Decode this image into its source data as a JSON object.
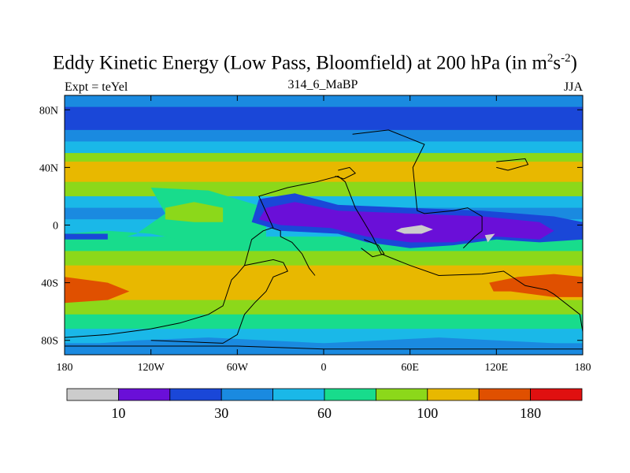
{
  "chart_data": {
    "type": "heatmap",
    "title_main": "Eddy Kinetic Energy (Low Pass, Bloomfield) at 200 hPa (in m",
    "title_sup1": "2",
    "title_mid": "s",
    "title_sup2": "-2",
    "title_end": ")",
    "subtitle": "314_6_MaBP",
    "left_label": "Expt = teYel",
    "right_label": "JJA",
    "x_range": [
      -180,
      180
    ],
    "y_range": [
      -90,
      90
    ],
    "x_ticks": [
      {
        "value": -180,
        "label": "180"
      },
      {
        "value": -120,
        "label": "120W"
      },
      {
        "value": -60,
        "label": "60W"
      },
      {
        "value": 0,
        "label": "0"
      },
      {
        "value": 60,
        "label": "60E"
      },
      {
        "value": 120,
        "label": "120E"
      },
      {
        "value": 180,
        "label": "180"
      }
    ],
    "y_ticks": [
      {
        "value": 80,
        "label": "80N"
      },
      {
        "value": 40,
        "label": "40N"
      },
      {
        "value": 0,
        "label": "0"
      },
      {
        "value": -40,
        "label": "40S"
      },
      {
        "value": -80,
        "label": "80S"
      }
    ],
    "levels": [
      {
        "label": "10",
        "color": "#cccccc"
      },
      {
        "label": "",
        "color": "#6a0fd8"
      },
      {
        "label": "30",
        "color": "#1a47d8"
      },
      {
        "label": "",
        "color": "#1a8ae0"
      },
      {
        "label": "60",
        "color": "#1ab8e8"
      },
      {
        "label": "",
        "color": "#18dc8c"
      },
      {
        "label": "100",
        "color": "#8cd81a"
      },
      {
        "label": "",
        "color": "#e8b800"
      },
      {
        "label": "180",
        "color": "#e05000"
      },
      {
        "label": "",
        "color": "#e01010"
      }
    ],
    "colorbar_labels": [
      {
        "boundary": 1,
        "label": "10"
      },
      {
        "boundary": 3,
        "label": "30"
      },
      {
        "boundary": 5,
        "label": "60"
      },
      {
        "boundary": 7,
        "label": "100"
      },
      {
        "boundary": 9,
        "label": "180"
      }
    ],
    "bands": [
      {
        "lat_top": 90,
        "lat_bot": 82,
        "level": 3
      },
      {
        "lat_top": 82,
        "lat_bot": 66,
        "level": 2
      },
      {
        "lat_top": 66,
        "lat_bot": 58,
        "level": 3
      },
      {
        "lat_top": 58,
        "lat_bot": 50,
        "level": 4
      },
      {
        "lat_top": 50,
        "lat_bot": 44,
        "level": 6
      },
      {
        "lat_top": 44,
        "lat_bot": 30,
        "level": 7
      },
      {
        "lat_top": 30,
        "lat_bot": 20,
        "level": 6
      },
      {
        "lat_top": 20,
        "lat_bot": 12,
        "level": 4
      },
      {
        "lat_top": 12,
        "lat_bot": 4,
        "level": 3
      },
      {
        "lat_top": 4,
        "lat_bot": -8,
        "level": 4
      },
      {
        "lat_top": -8,
        "lat_bot": -18,
        "level": 5
      },
      {
        "lat_top": -18,
        "lat_bot": -28,
        "level": 6
      },
      {
        "lat_top": -28,
        "lat_bot": -52,
        "level": 7
      },
      {
        "lat_top": -52,
        "lat_bot": -62,
        "level": 6
      },
      {
        "lat_top": -62,
        "lat_bot": -72,
        "level": 5
      },
      {
        "lat_top": -72,
        "lat_bot": -82,
        "level": 4
      },
      {
        "lat_top": -82,
        "lat_bot": -90,
        "level": 3
      }
    ],
    "regions": [
      {
        "level": 5,
        "points": [
          [
            -120,
            26
          ],
          [
            -80,
            24
          ],
          [
            -60,
            18
          ],
          [
            -40,
            12
          ],
          [
            -40,
            -18
          ],
          [
            -80,
            -14
          ],
          [
            -120,
            -6
          ],
          [
            -150,
            -4
          ],
          [
            -180,
            -6
          ],
          [
            -180,
            -14
          ],
          [
            -150,
            -12
          ],
          [
            -130,
            -6
          ],
          [
            -110,
            8
          ]
        ]
      },
      {
        "level": 6,
        "points": [
          [
            -110,
            12
          ],
          [
            -90,
            16
          ],
          [
            -70,
            12
          ],
          [
            -70,
            2
          ],
          [
            -90,
            2
          ],
          [
            -110,
            4
          ]
        ]
      },
      {
        "level": 2,
        "points": [
          [
            -45,
            18
          ],
          [
            -20,
            22
          ],
          [
            10,
            14
          ],
          [
            60,
            12
          ],
          [
            110,
            10
          ],
          [
            160,
            6
          ],
          [
            180,
            2
          ],
          [
            180,
            -10
          ],
          [
            150,
            -12
          ],
          [
            120,
            -10
          ],
          [
            90,
            -14
          ],
          [
            60,
            -16
          ],
          [
            30,
            -12
          ],
          [
            10,
            -6
          ],
          [
            -30,
            -4
          ],
          [
            -50,
            2
          ]
        ]
      },
      {
        "level": 1,
        "points": [
          [
            -40,
            12
          ],
          [
            -20,
            16
          ],
          [
            10,
            10
          ],
          [
            60,
            8
          ],
          [
            110,
            6
          ],
          [
            150,
            2
          ],
          [
            160,
            -4
          ],
          [
            150,
            -10
          ],
          [
            120,
            -8
          ],
          [
            90,
            -12
          ],
          [
            60,
            -12
          ],
          [
            30,
            -8
          ],
          [
            5,
            -2
          ],
          [
            -30,
            0
          ],
          [
            -45,
            4
          ]
        ]
      },
      {
        "level": 0,
        "points": [
          [
            54,
            -2
          ],
          [
            68,
            0
          ],
          [
            76,
            -3
          ],
          [
            68,
            -6
          ],
          [
            56,
            -6
          ],
          [
            50,
            -4
          ]
        ]
      },
      {
        "level": 0,
        "points": [
          [
            112,
            -7
          ],
          [
            119,
            -6
          ],
          [
            114,
            -12
          ]
        ]
      },
      {
        "level": 2,
        "points": [
          [
            -180,
            -6
          ],
          [
            -150,
            -6
          ],
          [
            -150,
            -10
          ],
          [
            -180,
            -10
          ]
        ]
      },
      {
        "level": 8,
        "points": [
          [
            -180,
            -36
          ],
          [
            -150,
            -40
          ],
          [
            -135,
            -46
          ],
          [
            -150,
            -52
          ],
          [
            -180,
            -54
          ]
        ]
      },
      {
        "level": 8,
        "points": [
          [
            115,
            -40
          ],
          [
            135,
            -36
          ],
          [
            160,
            -34
          ],
          [
            180,
            -36
          ],
          [
            180,
            -50
          ],
          [
            160,
            -50
          ],
          [
            130,
            -46
          ],
          [
            118,
            -46
          ]
        ]
      },
      {
        "level": 3,
        "points": [
          [
            -180,
            -84
          ],
          [
            -130,
            -80
          ],
          [
            -80,
            -78
          ],
          [
            -40,
            -80
          ],
          [
            0,
            -82
          ],
          [
            40,
            -80
          ],
          [
            80,
            -78
          ],
          [
            120,
            -80
          ],
          [
            160,
            -82
          ],
          [
            180,
            -84
          ],
          [
            180,
            -90
          ],
          [
            -180,
            -90
          ]
        ]
      }
    ],
    "outlines": [
      [
        [
          20,
          63
        ],
        [
          45,
          66
        ],
        [
          70,
          56
        ],
        [
          62,
          40
        ],
        [
          65,
          10
        ],
        [
          70,
          8
        ],
        [
          90,
          10
        ],
        [
          100,
          12
        ],
        [
          110,
          6
        ],
        [
          110,
          -4
        ],
        [
          105,
          -8
        ],
        [
          97,
          -16
        ]
      ],
      [
        [
          -120,
          -80
        ],
        [
          -70,
          -82
        ],
        [
          -60,
          -76
        ],
        [
          -55,
          -62
        ],
        [
          -48,
          -54
        ],
        [
          -40,
          -46
        ],
        [
          -35,
          -36
        ],
        [
          -25,
          -32
        ],
        [
          -28,
          -26
        ],
        [
          -35,
          -24
        ],
        [
          -55,
          -28
        ],
        [
          -60,
          -34
        ]
      ],
      [
        [
          -60,
          -34
        ],
        [
          -64,
          -38
        ],
        [
          -66,
          -44
        ],
        [
          -70,
          -56
        ],
        [
          -80,
          -62
        ],
        [
          -100,
          -68
        ],
        [
          -120,
          -72
        ],
        [
          -150,
          -76
        ],
        [
          -180,
          -78
        ]
      ],
      [
        [
          -55,
          -28
        ],
        [
          -50,
          -10
        ],
        [
          -42,
          -4
        ],
        [
          -36,
          -2
        ],
        [
          -30,
          -4
        ],
        [
          -30,
          -8
        ]
      ],
      [
        [
          -30,
          -8
        ],
        [
          -22,
          -12
        ],
        [
          -15,
          -20
        ],
        [
          -10,
          -30
        ],
        [
          -6,
          -35
        ]
      ],
      [
        [
          -35,
          -2
        ],
        [
          -45,
          20
        ],
        [
          -25,
          26
        ],
        [
          -15,
          28
        ],
        [
          -5,
          30
        ],
        [
          10,
          34
        ],
        [
          15,
          30
        ],
        [
          22,
          12
        ],
        [
          28,
          2
        ],
        [
          34,
          -8
        ],
        [
          40,
          -20
        ],
        [
          60,
          -28
        ],
        [
          80,
          -35
        ],
        [
          110,
          -34
        ],
        [
          125,
          -32
        ],
        [
          140,
          -42
        ],
        [
          155,
          -45
        ],
        [
          160,
          -48
        ],
        [
          178,
          -62
        ],
        [
          180,
          -74
        ]
      ],
      [
        [
          -180,
          -84
        ],
        [
          -60,
          -84
        ],
        [
          0,
          -86
        ],
        [
          60,
          -86
        ],
        [
          180,
          -86
        ]
      ],
      [
        [
          120,
          44
        ],
        [
          140,
          46
        ],
        [
          142,
          42
        ],
        [
          128,
          38
        ],
        [
          120,
          40
        ]
      ],
      [
        [
          10,
          38
        ],
        [
          18,
          40
        ],
        [
          22,
          36
        ],
        [
          14,
          32
        ],
        [
          8,
          34
        ]
      ],
      [
        [
          28,
          -10
        ],
        [
          38,
          -14
        ],
        [
          42,
          -20
        ],
        [
          34,
          -22
        ],
        [
          26,
          -16
        ]
      ]
    ]
  }
}
